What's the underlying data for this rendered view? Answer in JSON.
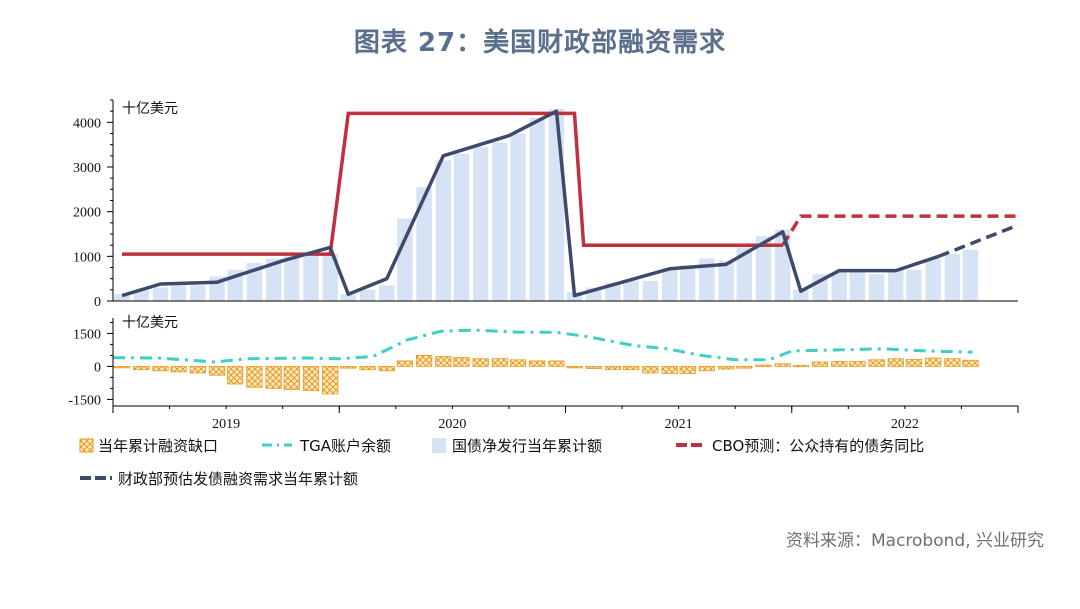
{
  "title": "图表 27：美国财政部融资需求",
  "source": "资料来源：Macrobond, 兴业研究",
  "chart_data": {
    "type": "bar+line",
    "top_panel": {
      "unit_label": "十亿美元",
      "ylim": [
        0,
        4500
      ],
      "yticks": [
        0,
        1000,
        2000,
        3000,
        4000
      ],
      "bars_name": "国债净发行当年累计额",
      "bars": [
        {
          "t": 2019.04,
          "v": 150
        },
        {
          "t": 2019.125,
          "v": 250
        },
        {
          "t": 2019.21,
          "v": 300
        },
        {
          "t": 2019.29,
          "v": 350
        },
        {
          "t": 2019.375,
          "v": 350
        },
        {
          "t": 2019.46,
          "v": 550
        },
        {
          "t": 2019.54,
          "v": 700
        },
        {
          "t": 2019.625,
          "v": 850
        },
        {
          "t": 2019.71,
          "v": 950
        },
        {
          "t": 2019.79,
          "v": 1000
        },
        {
          "t": 2019.875,
          "v": 1050
        },
        {
          "t": 2019.96,
          "v": 1050
        },
        {
          "t": 2020.04,
          "v": 150
        },
        {
          "t": 2020.125,
          "v": 250
        },
        {
          "t": 2020.21,
          "v": 350
        },
        {
          "t": 2020.29,
          "v": 1850
        },
        {
          "t": 2020.375,
          "v": 2550
        },
        {
          "t": 2020.46,
          "v": 3150
        },
        {
          "t": 2020.54,
          "v": 3300
        },
        {
          "t": 2020.625,
          "v": 3450
        },
        {
          "t": 2020.71,
          "v": 3550
        },
        {
          "t": 2020.79,
          "v": 3750
        },
        {
          "t": 2020.875,
          "v": 4100
        },
        {
          "t": 2020.96,
          "v": 4300
        },
        {
          "t": 2021.04,
          "v": 200
        },
        {
          "t": 2021.125,
          "v": 300
        },
        {
          "t": 2021.21,
          "v": 400
        },
        {
          "t": 2021.29,
          "v": 450
        },
        {
          "t": 2021.375,
          "v": 450
        },
        {
          "t": 2021.46,
          "v": 700
        },
        {
          "t": 2021.54,
          "v": 800
        },
        {
          "t": 2021.625,
          "v": 950
        },
        {
          "t": 2021.71,
          "v": 900
        },
        {
          "t": 2021.79,
          "v": 1200
        },
        {
          "t": 2021.875,
          "v": 1450
        },
        {
          "t": 2021.96,
          "v": 1600
        },
        {
          "t": 2022.04,
          "v": 250
        },
        {
          "t": 2022.125,
          "v": 600
        },
        {
          "t": 2022.21,
          "v": 650
        },
        {
          "t": 2022.29,
          "v": 650
        },
        {
          "t": 2022.375,
          "v": 600
        },
        {
          "t": 2022.46,
          "v": 700
        },
        {
          "t": 2022.54,
          "v": 700
        },
        {
          "t": 2022.625,
          "v": 950
        },
        {
          "t": 2022.71,
          "v": 1050
        },
        {
          "t": 2022.79,
          "v": 1150
        }
      ],
      "cbo_name": "CBO预测：公众持有的债务同比",
      "cbo_solid": [
        [
          2019.04,
          1050
        ],
        [
          2019.96,
          1050
        ],
        [
          2020.04,
          4200
        ],
        [
          2021.04,
          4200
        ],
        [
          2021.08,
          1250
        ],
        [
          2021.96,
          1250
        ]
      ],
      "cbo_dashed": [
        [
          2021.96,
          1250
        ],
        [
          2022.04,
          1900
        ],
        [
          2023.0,
          1900
        ]
      ],
      "treasury_name": "财政部预估发债融资需求当年累计额",
      "treasury_solid": [
        [
          2019.04,
          120
        ],
        [
          2019.21,
          380
        ],
        [
          2019.46,
          420
        ],
        [
          2019.75,
          900
        ],
        [
          2019.96,
          1200
        ],
        [
          2020.04,
          150
        ],
        [
          2020.21,
          500
        ],
        [
          2020.46,
          3250
        ],
        [
          2020.75,
          3700
        ],
        [
          2020.96,
          4250
        ],
        [
          2021.04,
          120
        ],
        [
          2021.46,
          720
        ],
        [
          2021.71,
          820
        ],
        [
          2021.96,
          1550
        ],
        [
          2022.04,
          220
        ],
        [
          2022.21,
          680
        ],
        [
          2022.46,
          680
        ],
        [
          2022.65,
          1000
        ]
      ],
      "treasury_dashed": [
        [
          2022.65,
          1000
        ],
        [
          2023.0,
          1700
        ]
      ]
    },
    "bottom_panel": {
      "unit_label": "十亿美元",
      "ylim": [
        -1800,
        2200
      ],
      "yticks": [
        -1500,
        0,
        1500
      ],
      "deficit_name": "当年累计融资缺口",
      "deficit": [
        {
          "t": 2019.04,
          "v": -50
        },
        {
          "t": 2019.125,
          "v": -150
        },
        {
          "t": 2019.21,
          "v": -200
        },
        {
          "t": 2019.29,
          "v": -250
        },
        {
          "t": 2019.375,
          "v": -300
        },
        {
          "t": 2019.46,
          "v": -400
        },
        {
          "t": 2019.54,
          "v": -800
        },
        {
          "t": 2019.625,
          "v": -950
        },
        {
          "t": 2019.71,
          "v": -1000
        },
        {
          "t": 2019.79,
          "v": -1050
        },
        {
          "t": 2019.875,
          "v": -1100
        },
        {
          "t": 2019.96,
          "v": -1250
        },
        {
          "t": 2020.04,
          "v": -80
        },
        {
          "t": 2020.125,
          "v": -150
        },
        {
          "t": 2020.21,
          "v": -200
        },
        {
          "t": 2020.29,
          "v": 250
        },
        {
          "t": 2020.375,
          "v": 500
        },
        {
          "t": 2020.46,
          "v": 450
        },
        {
          "t": 2020.54,
          "v": 400
        },
        {
          "t": 2020.625,
          "v": 350
        },
        {
          "t": 2020.71,
          "v": 350
        },
        {
          "t": 2020.79,
          "v": 300
        },
        {
          "t": 2020.875,
          "v": 250
        },
        {
          "t": 2020.96,
          "v": 250
        },
        {
          "t": 2021.04,
          "v": -60
        },
        {
          "t": 2021.125,
          "v": -100
        },
        {
          "t": 2021.21,
          "v": -150
        },
        {
          "t": 2021.29,
          "v": -150
        },
        {
          "t": 2021.375,
          "v": -300
        },
        {
          "t": 2021.46,
          "v": -320
        },
        {
          "t": 2021.54,
          "v": -320
        },
        {
          "t": 2021.625,
          "v": -200
        },
        {
          "t": 2021.71,
          "v": -120
        },
        {
          "t": 2021.79,
          "v": -80
        },
        {
          "t": 2021.875,
          "v": 60
        },
        {
          "t": 2021.96,
          "v": 120
        },
        {
          "t": 2022.04,
          "v": 50
        },
        {
          "t": 2022.125,
          "v": 200
        },
        {
          "t": 2022.21,
          "v": 220
        },
        {
          "t": 2022.29,
          "v": 220
        },
        {
          "t": 2022.375,
          "v": 300
        },
        {
          "t": 2022.46,
          "v": 350
        },
        {
          "t": 2022.54,
          "v": 320
        },
        {
          "t": 2022.625,
          "v": 380
        },
        {
          "t": 2022.71,
          "v": 350
        },
        {
          "t": 2022.79,
          "v": 280
        }
      ],
      "tga_name": "TGA账户余额",
      "tga": [
        [
          2019.0,
          400
        ],
        [
          2019.2,
          380
        ],
        [
          2019.45,
          200
        ],
        [
          2019.6,
          350
        ],
        [
          2019.85,
          380
        ],
        [
          2020.0,
          350
        ],
        [
          2020.15,
          450
        ],
        [
          2020.3,
          1200
        ],
        [
          2020.45,
          1600
        ],
        [
          2020.6,
          1650
        ],
        [
          2020.8,
          1550
        ],
        [
          2020.96,
          1550
        ],
        [
          2021.1,
          1350
        ],
        [
          2021.3,
          950
        ],
        [
          2021.45,
          800
        ],
        [
          2021.6,
          500
        ],
        [
          2021.75,
          300
        ],
        [
          2021.9,
          300
        ],
        [
          2022.0,
          700
        ],
        [
          2022.2,
          750
        ],
        [
          2022.4,
          800
        ],
        [
          2022.6,
          700
        ],
        [
          2022.8,
          650
        ]
      ]
    },
    "x_axis": {
      "xlim": [
        2019.0,
        2023.0
      ],
      "year_labels": [
        "2019",
        "2020",
        "2021",
        "2022"
      ]
    }
  },
  "legend": [
    {
      "key": "deficit",
      "label": "当年累计融资缺口"
    },
    {
      "key": "tga",
      "label": "TGA账户余额"
    },
    {
      "key": "bars",
      "label": "国债净发行当年累计额"
    },
    {
      "key": "cbo",
      "label": "CBO预测：公众持有的债务同比"
    },
    {
      "key": "treasury",
      "label": "财政部预估发债融资需求当年累计额"
    }
  ],
  "colors": {
    "bar_fill": "#d6e3f5",
    "cbo_red": "#c0313d",
    "treasury_navy": "#3f4a6b",
    "tga_teal": "#3ecfc5",
    "deficit_orange": "#f2b24a",
    "title": "#5a6f8c"
  }
}
